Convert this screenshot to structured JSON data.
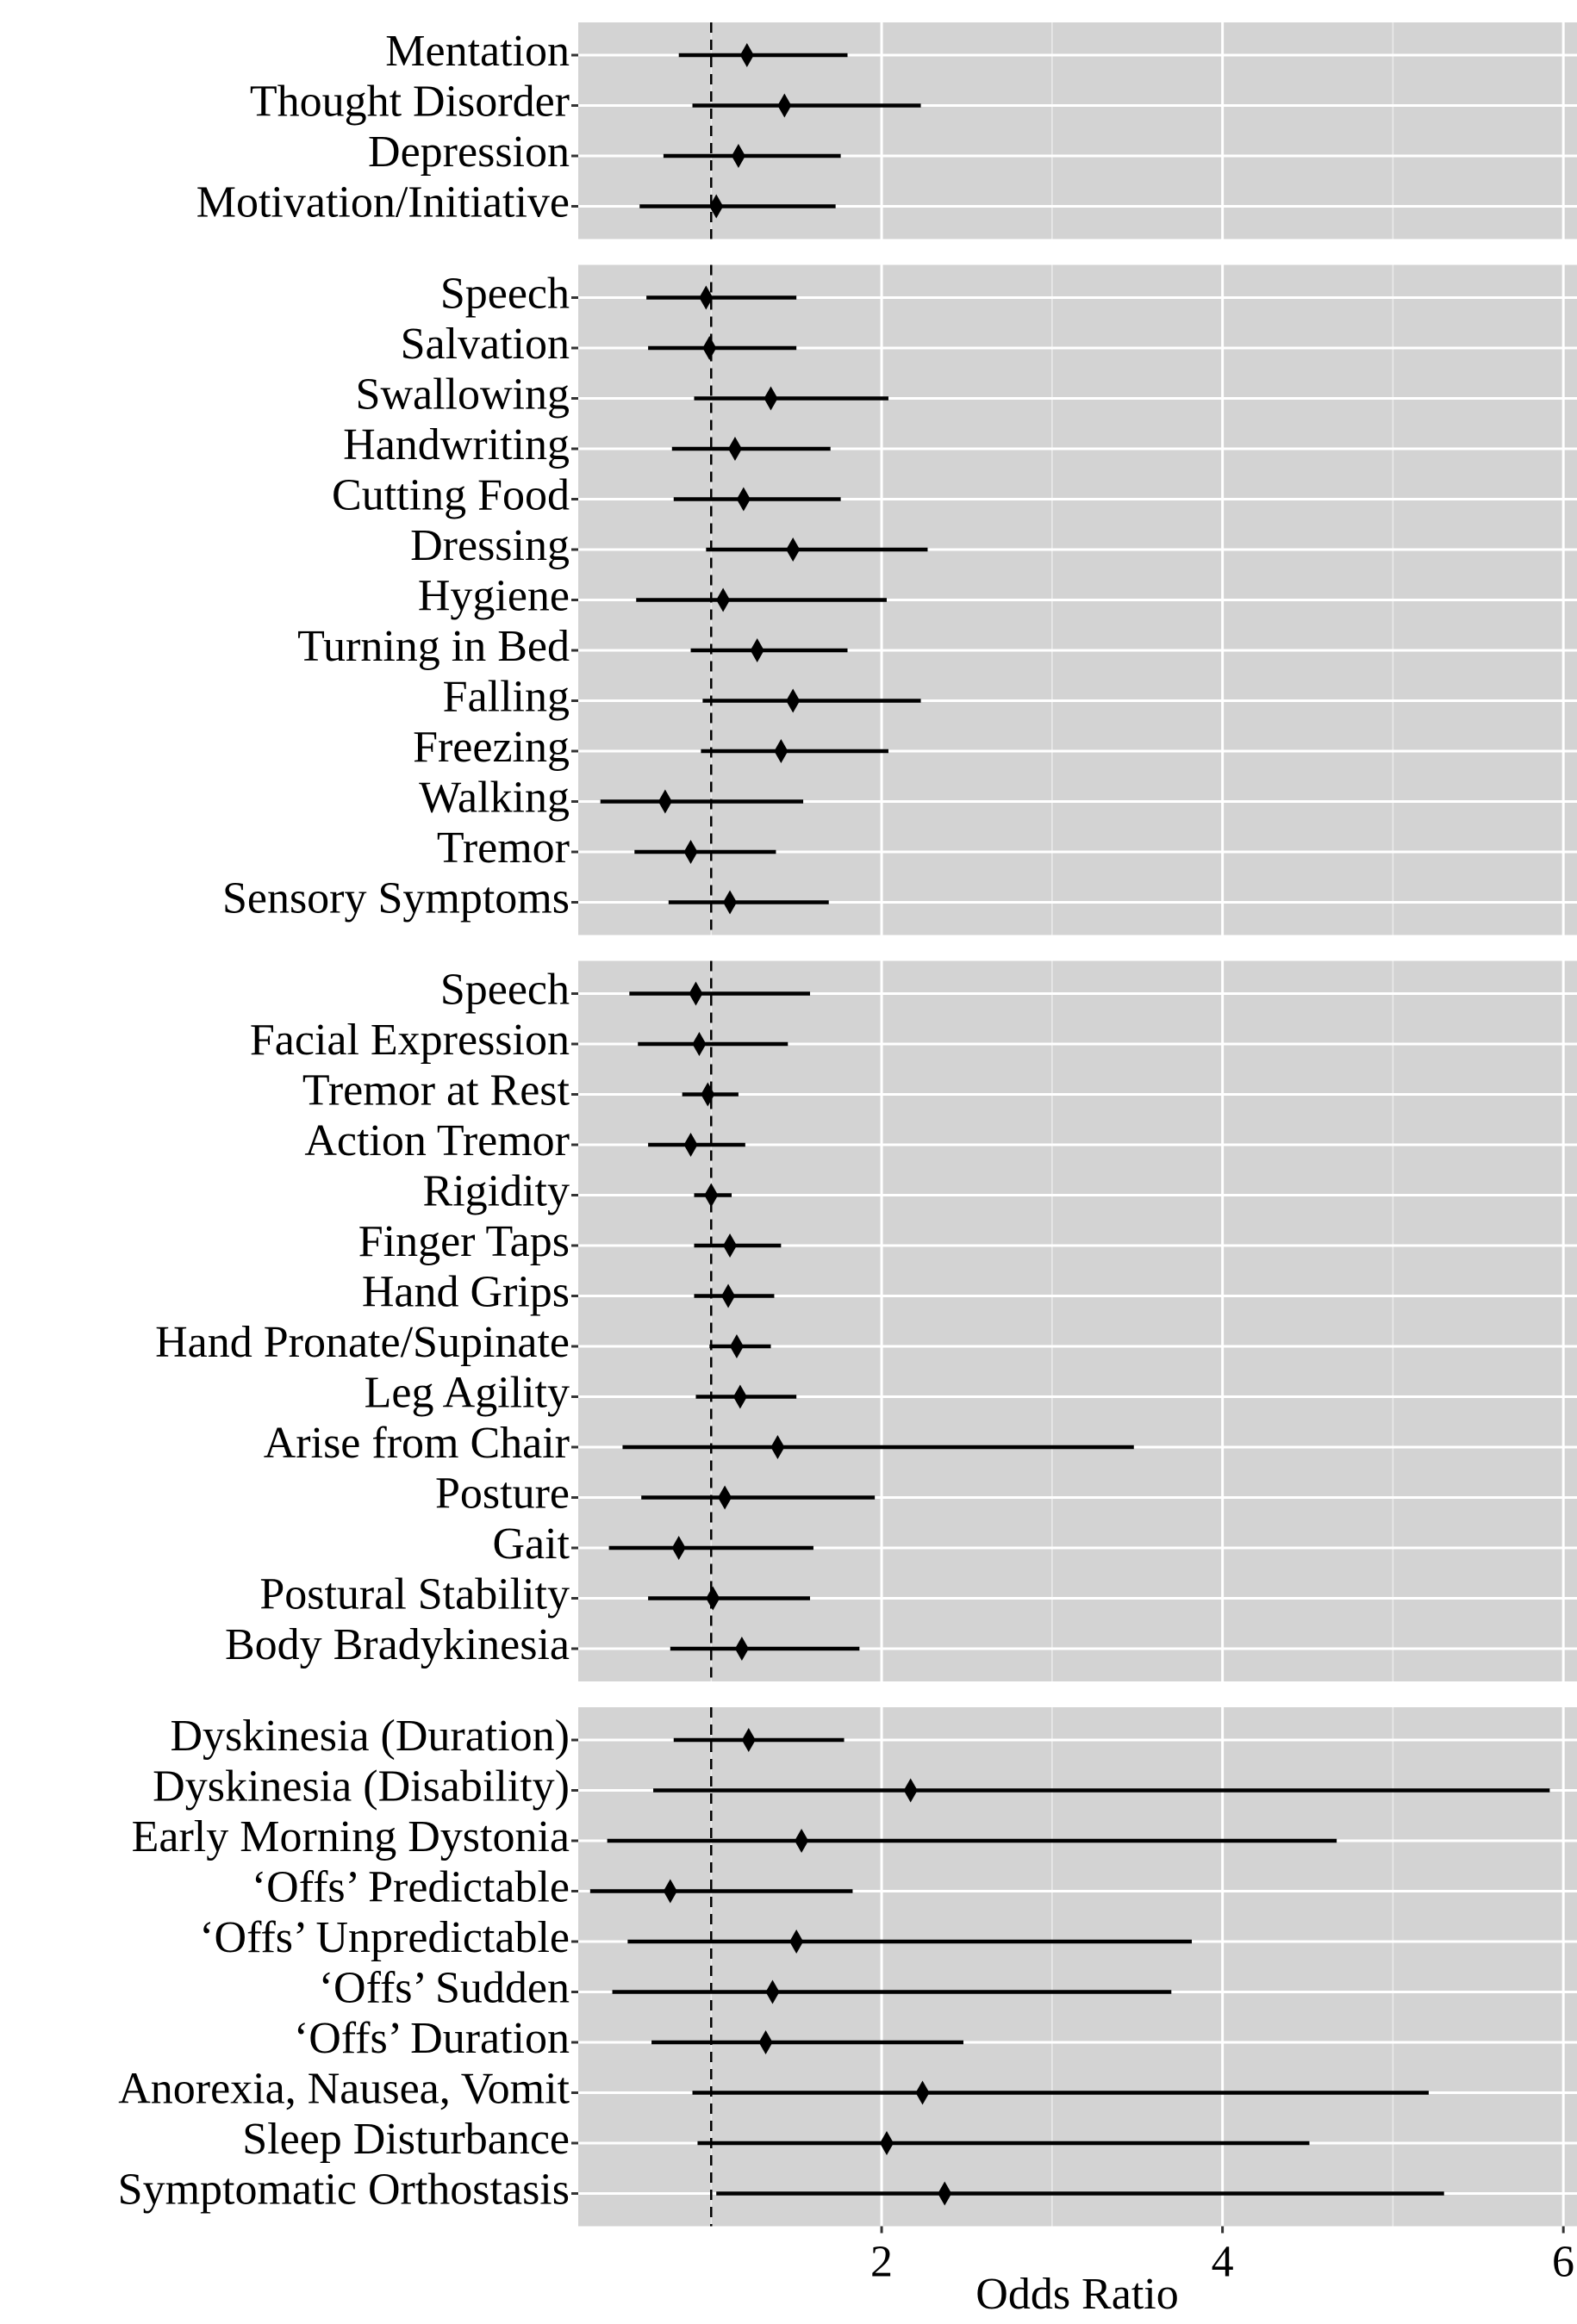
{
  "chart_data": {
    "type": "forest",
    "xlabel": "Odds Ratio",
    "xlim": [
      0.22,
      6.08
    ],
    "xticks": [
      2,
      4,
      6
    ],
    "xminor": [
      1,
      3,
      5
    ],
    "reference_line": 1,
    "grid": true,
    "color": "#000000",
    "panels": [
      {
        "labels": [
          "Mentation",
          "Thought Disorder",
          "Depression",
          "Motivation/Initiative"
        ],
        "estimates": [
          1.21,
          1.43,
          1.16,
          1.03
        ],
        "lower": [
          0.81,
          0.89,
          0.72,
          0.58
        ],
        "upper": [
          1.8,
          2.23,
          1.76,
          1.73
        ]
      },
      {
        "labels": [
          "Speech",
          "Salvation",
          "Swallowing",
          "Handwriting",
          "Cutting Food",
          "Dressing",
          "Hygiene",
          "Turning in Bed",
          "Falling",
          "Freezing",
          "Walking",
          "Tremor",
          "Sensory Symptoms"
        ],
        "estimates": [
          0.97,
          0.99,
          1.35,
          1.14,
          1.19,
          1.48,
          1.07,
          1.27,
          1.48,
          1.41,
          0.73,
          0.88,
          1.11
        ],
        "lower": [
          0.62,
          0.63,
          0.9,
          0.77,
          0.78,
          0.97,
          0.56,
          0.88,
          0.95,
          0.94,
          0.35,
          0.55,
          0.75
        ],
        "upper": [
          1.5,
          1.5,
          2.04,
          1.7,
          1.76,
          2.27,
          2.03,
          1.8,
          2.23,
          2.04,
          1.54,
          1.38,
          1.69
        ]
      },
      {
        "labels": [
          "Speech",
          "Facial Expression",
          "Tremor at Rest",
          "Action Tremor",
          "Rigidity",
          "Finger Taps",
          "Hand Grips",
          "Hand Pronate/Supinate",
          "Leg Agility",
          "Arise from Chair",
          "Posture",
          "Gait",
          "Postural Stability",
          "Body Bradykinesia"
        ],
        "estimates": [
          0.91,
          0.93,
          0.98,
          0.88,
          1.0,
          1.11,
          1.1,
          1.15,
          1.17,
          1.39,
          1.08,
          0.81,
          1.01,
          1.18
        ],
        "lower": [
          0.52,
          0.57,
          0.83,
          0.63,
          0.9,
          0.9,
          0.9,
          0.99,
          0.91,
          0.48,
          0.59,
          0.4,
          0.63,
          0.76
        ],
        "upper": [
          1.58,
          1.45,
          1.16,
          1.2,
          1.12,
          1.41,
          1.37,
          1.35,
          1.5,
          3.48,
          1.96,
          1.6,
          1.58,
          1.87
        ]
      },
      {
        "labels": [
          "Dyskinesia (Duration)",
          "Dyskinesia (Disability)",
          "Early Morning Dystonia",
          "‘Offs’ Predictable",
          "‘Offs’ Unpredictable",
          "‘Offs’ Sudden",
          "‘Offs’ Duration",
          "Anorexia, Nausea, Vomit",
          "Sleep Disturbance",
          "Symptomatic Orthostasis"
        ],
        "estimates": [
          1.22,
          2.17,
          1.53,
          0.76,
          1.5,
          1.36,
          1.32,
          2.24,
          2.03,
          2.37
        ],
        "lower": [
          0.78,
          0.66,
          0.39,
          0.29,
          0.51,
          0.42,
          0.65,
          0.89,
          0.92,
          1.03
        ],
        "upper": [
          1.78,
          5.92,
          4.67,
          1.83,
          3.82,
          3.7,
          2.48,
          5.21,
          4.51,
          5.3
        ]
      }
    ]
  }
}
